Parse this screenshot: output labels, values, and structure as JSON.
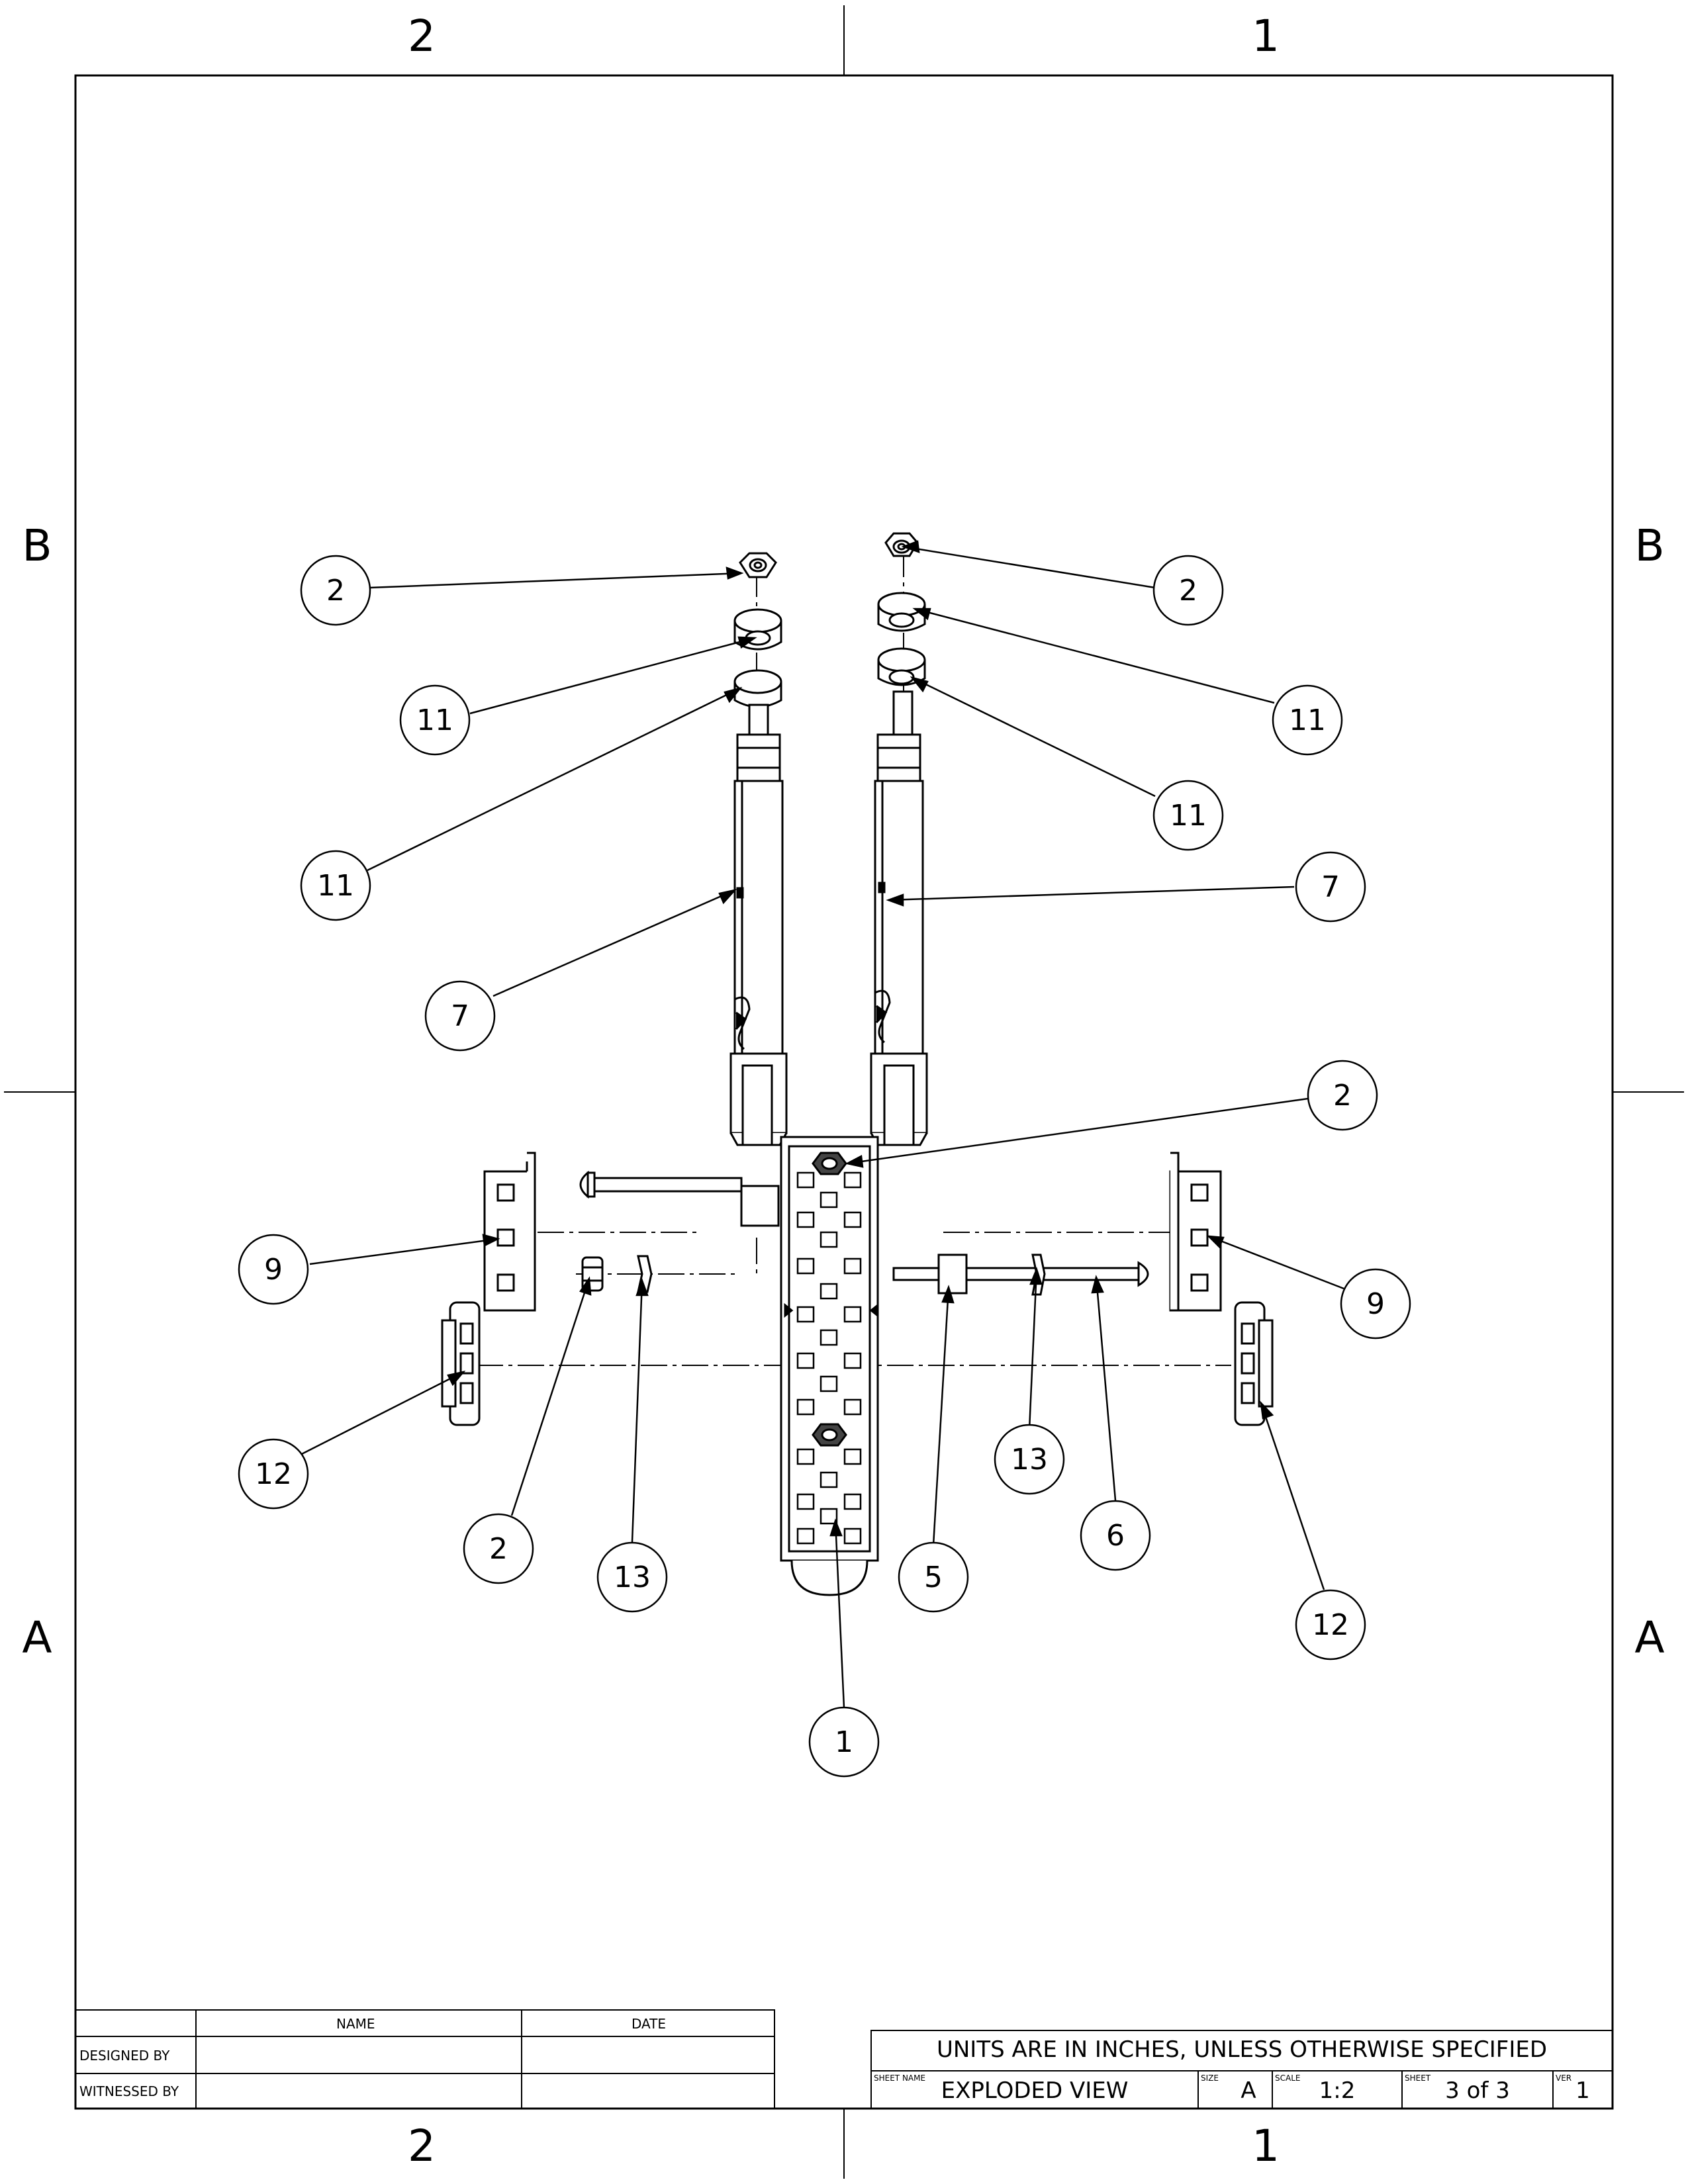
{
  "zones": {
    "top": [
      "2",
      "1"
    ],
    "bottom": [
      "2",
      "1"
    ],
    "left": [
      "B",
      "A"
    ],
    "right": [
      "B",
      "A"
    ]
  },
  "signoff_block": {
    "name_header": "NAME",
    "date_header": "DATE",
    "designed_by_label": "DESIGNED BY",
    "witnessed_by_label": "WITNESSED BY",
    "designed_by_name": "",
    "designed_by_date": "",
    "witnessed_by_name": "",
    "witnessed_by_date": ""
  },
  "title_block": {
    "units_note": "UNITS ARE IN INCHES, UNLESS OTHERWISE SPECIFIED",
    "sheet_name_label": "SHEET NAME",
    "sheet_name": "EXPLODED VIEW",
    "size_label": "SIZE",
    "size": "A",
    "scale_label": "SCALE",
    "scale": "1:2",
    "sheet_label": "SHEET",
    "sheet": "3 of 3",
    "ver_label": "VER",
    "ver": "1"
  },
  "balloons": [
    "2",
    "11",
    "11",
    "7",
    "2",
    "11",
    "11",
    "7",
    "2",
    "9",
    "9",
    "12",
    "2",
    "13",
    "5",
    "13",
    "6",
    "12",
    "1"
  ]
}
